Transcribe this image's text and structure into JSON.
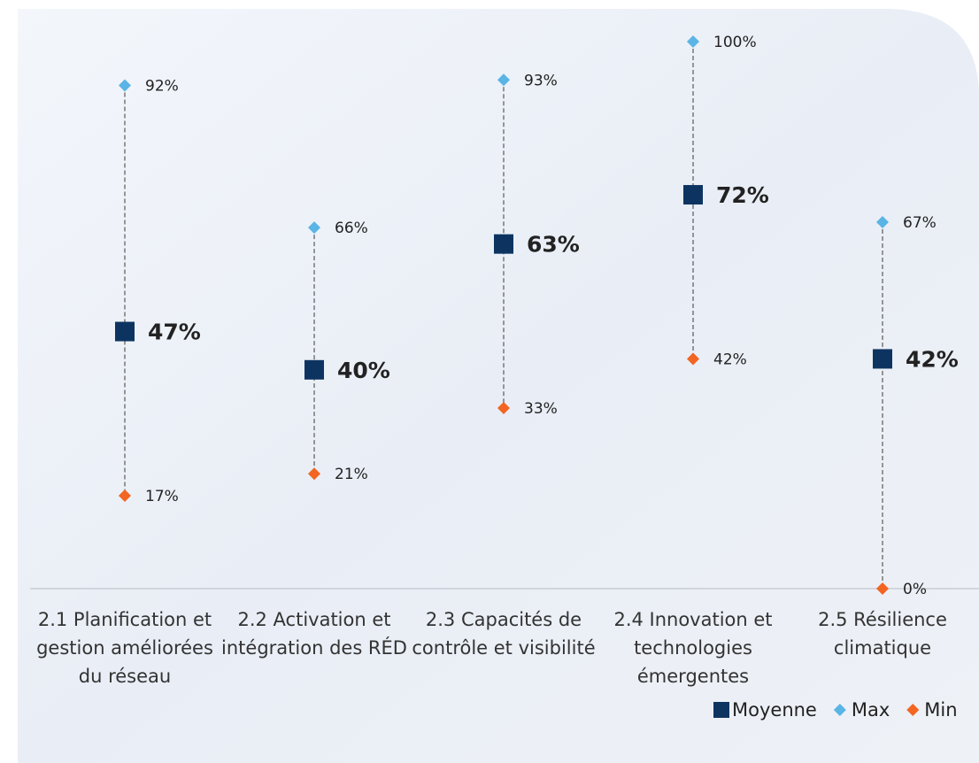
{
  "chart_data": {
    "type": "dot-range",
    "categories": [
      "2.1 Planification et gestion améliorées du réseau",
      "2.2 Activation et intégration des RÉD",
      "2.3 Capacités de contrôle et visibilité",
      "2.4 Innovation et technologies émergentes",
      "2.5 Résilience climatique"
    ],
    "series": [
      {
        "name": "Moyenne",
        "color": "#0d3461",
        "values": [
          47,
          40,
          63,
          72,
          42
        ],
        "value_labels": [
          "47%",
          "40%",
          "63%",
          "72%",
          "42%"
        ]
      },
      {
        "name": "Max",
        "color": "#5ab4e5",
        "values": [
          92,
          66,
          93,
          100,
          67
        ],
        "value_labels": [
          "92%",
          "66%",
          "93%",
          "100%",
          "67%"
        ]
      },
      {
        "name": "Min",
        "color": "#f26522",
        "values": [
          17,
          21,
          33,
          42,
          0
        ],
        "value_labels": [
          "17%",
          "21%",
          "33%",
          "42%",
          "0%"
        ]
      }
    ],
    "ylim": [
      0,
      100
    ],
    "legend": "bottom-right"
  }
}
